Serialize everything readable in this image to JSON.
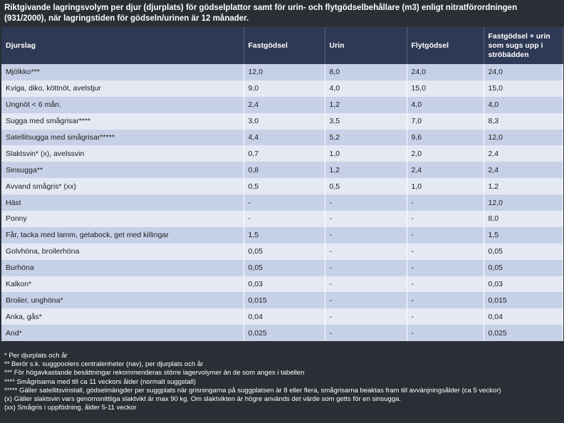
{
  "title": "Riktgivande lagringsvolym per djur (djurplats) för gödselplattor samt för urin- och flytgödselbehållare (m3) enligt nitratförordningen (931/2000), när lagringstiden för gödseln/urinen är 12 månader.",
  "headers": [
    "Djurslag",
    "Fastgödsel",
    "Urin",
    "Flytgödsel",
    "Fastgödsel + urin som sugs upp i ströbädden"
  ],
  "rows": [
    [
      "Mjölkko***",
      "12,0",
      "8,0",
      "24,0",
      "24,0"
    ],
    [
      "Kviga, diko, köttnöt, avelstjur",
      "9,0",
      "4,0",
      "15,0",
      "15,0"
    ],
    [
      "Ungnöt < 6 mån.",
      "2,4",
      "1,2",
      "4,0",
      "4,0"
    ],
    [
      "Sugga med smågrisar****",
      "3,0",
      "3,5",
      "7,0",
      "8,3"
    ],
    [
      "Satellitsugga med smågrisar*****",
      "4,4",
      "5,2",
      "9,6",
      "12,0"
    ],
    [
      "Slaktsvin* (x), avelssvin",
      "0,7",
      "1,0",
      "2,0",
      "2,4"
    ],
    [
      "Sinsugga**",
      "0,8",
      "1,2",
      "2,4",
      "2,4"
    ],
    [
      "Avvand smågris* (xx)",
      "0,5",
      "0,5",
      "1,0",
      "1,2"
    ],
    [
      "Häst",
      "-",
      "-",
      "-",
      "12,0"
    ],
    [
      "Ponny",
      "-",
      "-",
      "-",
      "8,0"
    ],
    [
      "Får, tacka med lamm, getabock, get med killingar",
      "1,5",
      "-",
      "-",
      "1,5"
    ],
    [
      "Golvhöna, broilerhöna",
      "0,05",
      "-",
      "-",
      "0,05"
    ],
    [
      "Burhöna",
      "0,05",
      "-",
      "-",
      "0,05"
    ],
    [
      "Kalkon*",
      "0,03",
      "-",
      "-",
      "0,03"
    ],
    [
      "Broiler, unghöna*",
      "0,015",
      "-",
      "-",
      "0,015"
    ],
    [
      "Anka, gås*",
      "0,04",
      "-",
      "-",
      "0,04"
    ],
    [
      "And*",
      "0,025",
      "-",
      "-",
      "0,025"
    ]
  ],
  "footnotes": [
    "* Per djurplats och år",
    "** Berör s.k. suggpoolers centralenheter (nav), per djurplats och år",
    "*** För högavkastande besättningar rekommenderas större lagervolymer än de som anges i tabellen",
    "**** Smågrisarna med till ca 11 veckors ålder (normalt suggstall)",
    "***** Gäller satellitsvinstall, gödselmängder per suggplats när grisningarna på suggplatsen är 8 eller flera, smågrisarna beaktas fram till avvänjningsålder (ca 5 veckor)",
    "(x) Gäller slaktsvin vars genomsnittliga slaktvikt är max 90 kg. Om slaktvikten är högre används det värde som getts för en sinsugga.",
    "(xx) Smågris i uppfödning, ålder 5-11 veckor"
  ]
}
